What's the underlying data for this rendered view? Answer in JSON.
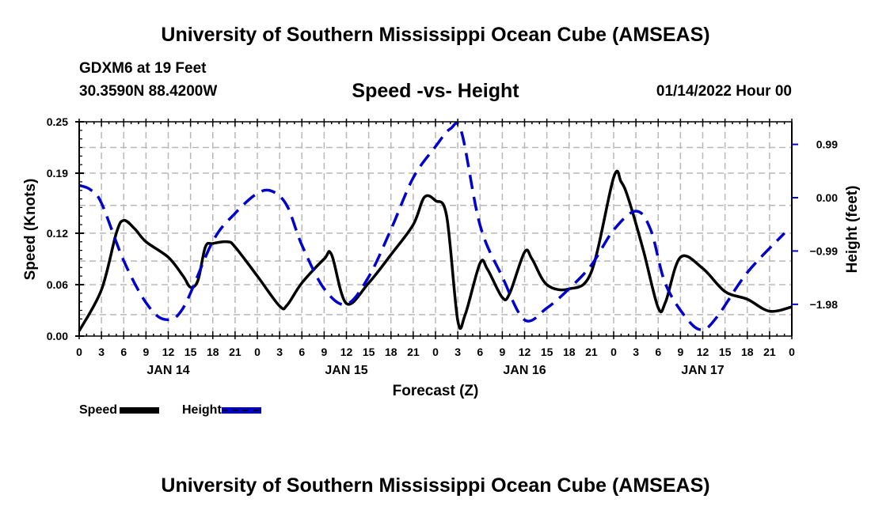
{
  "header": {
    "main_title": "University of Southern Mississippi Ocean Cube (AMSEAS)",
    "station": "GDXM6 at 19 Feet",
    "coordinates": "30.3590N  88.4200W",
    "subtitle": "Speed -vs- Height",
    "run_time": "01/14/2022 Hour 00"
  },
  "footer": {
    "title": "University of Southern Mississippi Ocean Cube (AMSEAS)"
  },
  "legend": {
    "speed_label": "Speed",
    "height_label": "Height"
  },
  "chart_data": {
    "type": "line",
    "title": "Speed -vs- Height",
    "xlabel": "Forecast (Z)",
    "ylabel": "Speed (Knots)",
    "y2label": "Height (feet)",
    "xlim": [
      0,
      96
    ],
    "ylim": [
      0,
      0.25
    ],
    "y2lim": [
      -2.57,
      1.41
    ],
    "grid": true,
    "legend_position": "bottom-left",
    "x_tick_hours": [
      0,
      3,
      6,
      9,
      12,
      15,
      18,
      21,
      24,
      27,
      30,
      33,
      36,
      39,
      42,
      45,
      48,
      51,
      54,
      57,
      60,
      63,
      66,
      69,
      72,
      75,
      78,
      81,
      84,
      87,
      90,
      93,
      96
    ],
    "x_tick_labels": [
      "0",
      "3",
      "6",
      "9",
      "12",
      "15",
      "18",
      "21",
      "0",
      "3",
      "6",
      "9",
      "12",
      "15",
      "18",
      "21",
      "0",
      "3",
      "6",
      "9",
      "12",
      "15",
      "18",
      "21",
      "0",
      "3",
      "6",
      "9",
      "12",
      "15",
      "18",
      "21",
      "0"
    ],
    "date_labels": [
      {
        "hour": 12,
        "label": "JAN 14"
      },
      {
        "hour": 36,
        "label": "JAN 15"
      },
      {
        "hour": 60,
        "label": "JAN 16"
      },
      {
        "hour": 84,
        "label": "JAN 17"
      }
    ],
    "y_ticks": [
      0.0,
      0.06,
      0.12,
      0.19,
      0.25
    ],
    "y_tick_labels": [
      "0.00",
      "0.06",
      "0.12",
      "0.19",
      "0.25"
    ],
    "y_grid": [
      0.025,
      0.06,
      0.0875,
      0.12,
      0.1525,
      0.19,
      0.22
    ],
    "y2_ticks": [
      0.99,
      0.0,
      -0.99,
      -1.98
    ],
    "y2_tick_labels": [
      "0.99",
      "0.00",
      "−0.99",
      "−1.98"
    ],
    "series": [
      {
        "name": "Speed",
        "axis": "left",
        "color": "#000000",
        "style": "solid",
        "x": [
          0,
          3,
          5,
          6,
          7.5,
          9,
          12,
          14,
          15,
          16,
          17,
          18,
          20,
          21,
          24,
          27,
          28,
          30,
          33,
          34,
          36,
          39,
          42,
          45,
          46.5,
          48,
          49.5,
          51,
          52,
          54,
          55,
          57,
          58,
          60,
          61,
          63,
          66,
          69,
          72,
          73,
          74,
          76,
          78,
          79,
          81,
          84,
          87,
          90,
          93,
          96
        ],
        "values": [
          0.006,
          0.054,
          0.12,
          0.135,
          0.125,
          0.11,
          0.092,
          0.07,
          0.057,
          0.065,
          0.104,
          0.108,
          0.11,
          0.104,
          0.07,
          0.035,
          0.036,
          0.062,
          0.09,
          0.095,
          0.038,
          0.062,
          0.095,
          0.13,
          0.162,
          0.158,
          0.14,
          0.018,
          0.025,
          0.085,
          0.078,
          0.045,
          0.05,
          0.098,
          0.09,
          0.06,
          0.055,
          0.075,
          0.185,
          0.18,
          0.16,
          0.1,
          0.033,
          0.04,
          0.092,
          0.079,
          0.052,
          0.043,
          0.029,
          0.034
        ]
      },
      {
        "name": "Height",
        "axis": "right",
        "color": "#0000cc",
        "style": "dashed",
        "x": [
          0,
          1.5,
          3,
          6,
          9,
          11.5,
          14,
          18,
          21,
          24,
          26,
          28,
          30,
          33,
          36,
          39,
          42,
          45,
          48,
          50,
          51.5,
          54,
          57,
          60,
          63,
          66,
          69,
          72,
          75,
          77,
          79,
          82,
          84,
          86,
          90,
          95
        ],
        "values": [
          0.23,
          0.15,
          -0.1,
          -1.17,
          -1.95,
          -2.26,
          -2.05,
          -0.81,
          -0.29,
          0.08,
          0.12,
          -0.15,
          -0.88,
          -1.69,
          -1.98,
          -1.47,
          -0.59,
          0.37,
          0.95,
          1.28,
          1.22,
          -0.51,
          -1.47,
          -2.27,
          -2.05,
          -1.69,
          -1.25,
          -0.6,
          -0.25,
          -0.6,
          -1.61,
          -2.27,
          -2.45,
          -2.2,
          -1.39,
          -0.66
        ]
      }
    ]
  }
}
